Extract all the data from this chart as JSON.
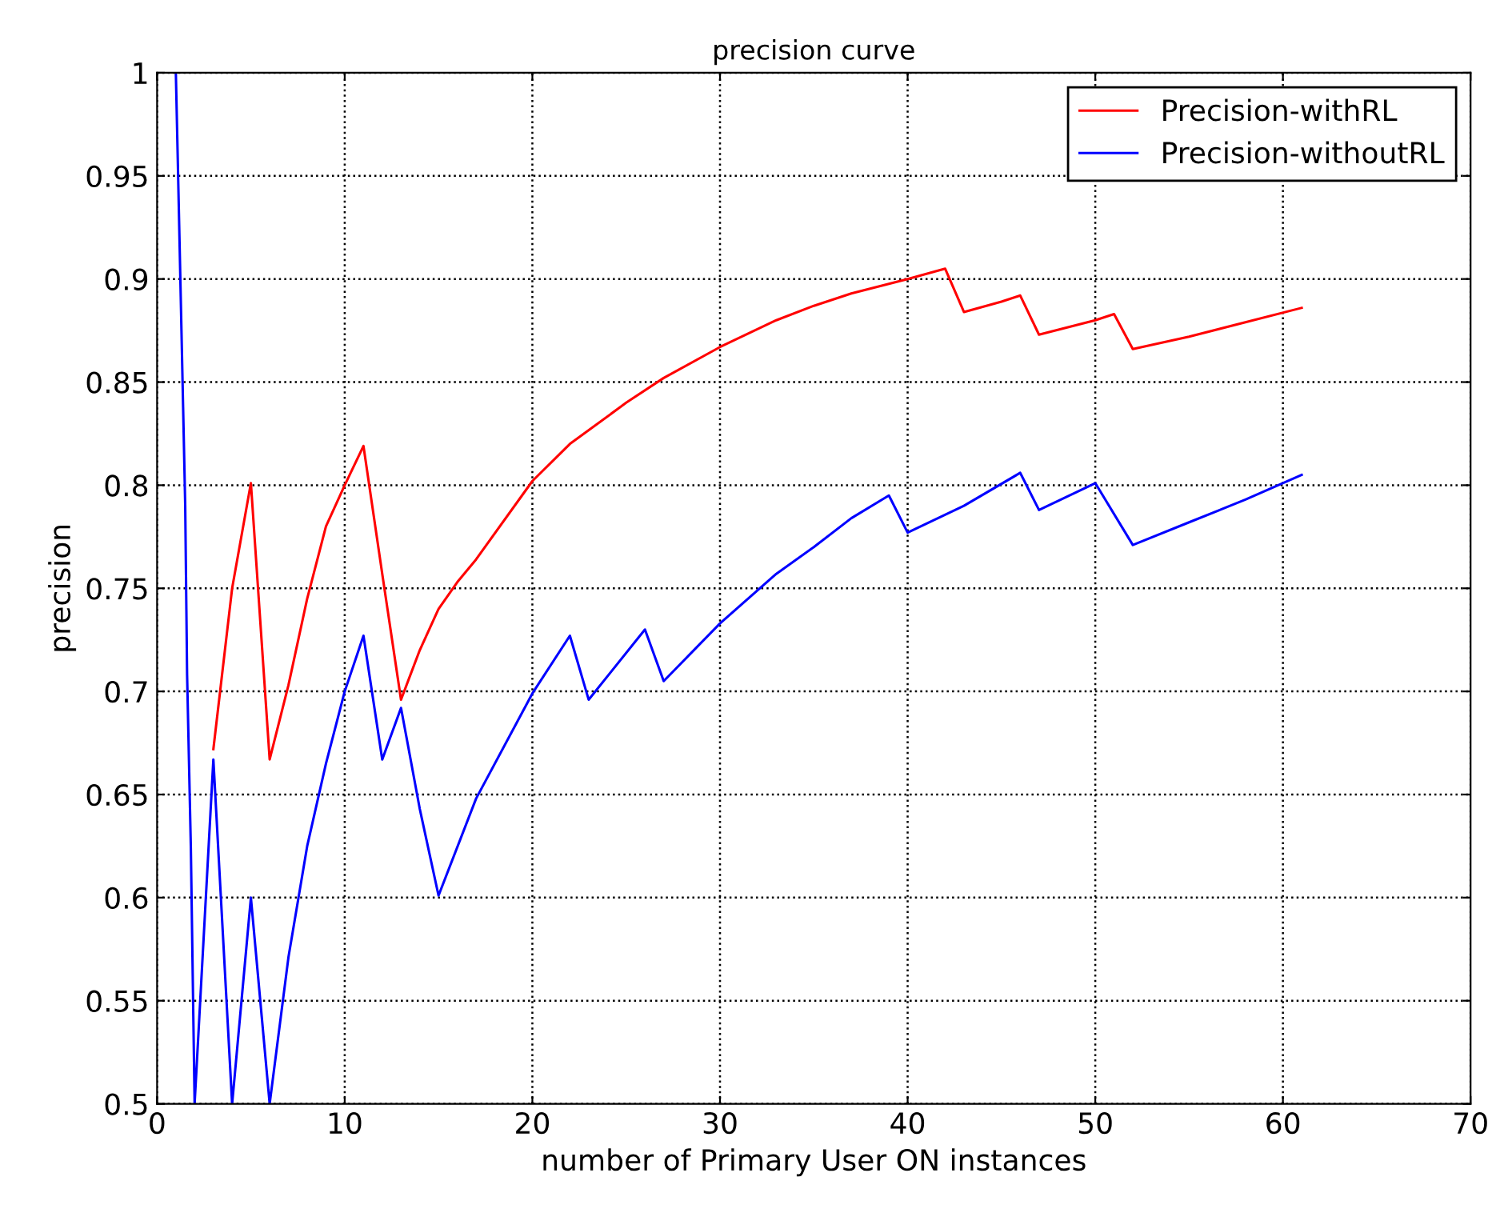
{
  "chart_data": {
    "type": "line",
    "title": "precision curve",
    "xlabel": "number of Primary User ON instances",
    "ylabel": "precision",
    "xlim": [
      0,
      70
    ],
    "xticks": [
      0,
      10,
      20,
      30,
      40,
      50,
      60,
      70
    ],
    "ylim": [
      0.5,
      1
    ],
    "yticks": [
      0.5,
      0.55,
      0.6,
      0.65,
      0.7,
      0.75,
      0.8,
      0.85,
      0.9,
      0.95,
      1
    ],
    "grid": true,
    "legend": "top right",
    "line_style": "solid",
    "marker": "none",
    "series": [
      {
        "name": "Precision-withRL",
        "color": "#ff0000",
        "x": [
          3,
          4,
          5,
          6,
          7,
          8,
          9,
          10,
          11,
          12,
          13,
          14,
          15,
          16,
          17,
          20,
          22,
          25,
          27,
          30,
          33,
          35,
          37,
          40,
          42,
          43,
          45,
          46,
          47,
          50,
          51,
          52,
          55,
          58,
          61
        ],
        "values": [
          0.672,
          0.75,
          0.801,
          0.667,
          0.703,
          0.745,
          0.78,
          0.8,
          0.819,
          0.757,
          0.696,
          0.72,
          0.74,
          0.753,
          0.764,
          0.802,
          0.82,
          0.84,
          0.852,
          0.867,
          0.88,
          0.887,
          0.893,
          0.9,
          0.905,
          0.884,
          0.889,
          0.892,
          0.873,
          0.88,
          0.883,
          0.866,
          0.872,
          0.879,
          0.886
        ]
      },
      {
        "name": "Precision-withoutRL",
        "color": "#0000ff",
        "x": [
          1,
          1.1,
          1.3,
          1.5,
          1.6,
          1.8,
          2,
          3,
          4,
          5,
          6,
          7,
          8,
          9,
          10,
          11,
          12,
          13,
          14,
          15,
          17,
          20,
          22,
          23,
          26,
          27,
          30,
          33,
          35,
          37,
          39,
          40,
          43,
          46,
          47,
          50,
          52,
          55,
          58,
          61
        ],
        "values": [
          1,
          0.959,
          0.875,
          0.79,
          0.708,
          0.624,
          0.5,
          0.667,
          0.5,
          0.6,
          0.5,
          0.571,
          0.625,
          0.665,
          0.7,
          0.727,
          0.667,
          0.692,
          0.643,
          0.601,
          0.648,
          0.699,
          0.727,
          0.696,
          0.73,
          0.705,
          0.733,
          0.757,
          0.77,
          0.784,
          0.795,
          0.777,
          0.79,
          0.806,
          0.788,
          0.801,
          0.771,
          0.782,
          0.793,
          0.805
        ]
      }
    ]
  }
}
